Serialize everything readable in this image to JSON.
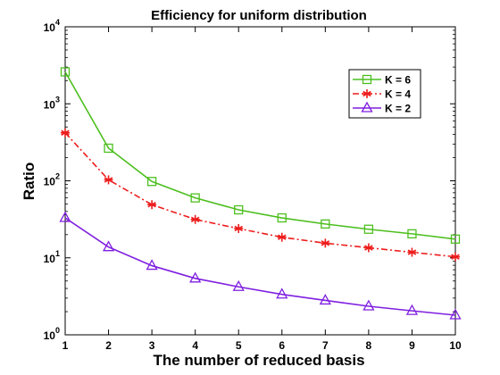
{
  "chart_data": {
    "type": "line",
    "title": "Efficiency for uniform distribution",
    "xlabel": "The number of reduced basis",
    "ylabel": "Ratio",
    "y_scale": "log",
    "x": [
      1,
      2,
      3,
      4,
      5,
      6,
      7,
      8,
      9,
      10
    ],
    "xlim": [
      1,
      10
    ],
    "ylim": [
      1,
      10000
    ],
    "x_ticks": [
      "1",
      "2",
      "3",
      "4",
      "5",
      "6",
      "7",
      "8",
      "9",
      "10"
    ],
    "y_ticks": [
      {
        "base": "10",
        "exp": "0",
        "value": 1
      },
      {
        "base": "10",
        "exp": "1",
        "value": 10
      },
      {
        "base": "10",
        "exp": "2",
        "value": 100
      },
      {
        "base": "10",
        "exp": "3",
        "value": 1000
      },
      {
        "base": "10",
        "exp": "4",
        "value": 10000
      }
    ],
    "grid": false,
    "legend_position": "top-right",
    "series": [
      {
        "name": "K = 6",
        "color": "#4dbf1f",
        "marker": "square",
        "line_style": "solid",
        "values": [
          2600,
          265,
          98,
          60,
          42,
          33,
          27.5,
          23.5,
          20.5,
          17.5
        ]
      },
      {
        "name": "K = 4",
        "color": "#ee1c1c",
        "marker": "asterisk",
        "line_style": "dash-dot",
        "values": [
          420,
          103,
          49,
          31.5,
          24,
          18.5,
          15.5,
          13.5,
          11.8,
          10.3
        ]
      },
      {
        "name": "K = 2",
        "color": "#7f1fe0",
        "marker": "triangle",
        "line_style": "solid",
        "values": [
          33,
          13.8,
          7.9,
          5.4,
          4.2,
          3.35,
          2.8,
          2.35,
          2.05,
          1.8
        ]
      }
    ]
  }
}
